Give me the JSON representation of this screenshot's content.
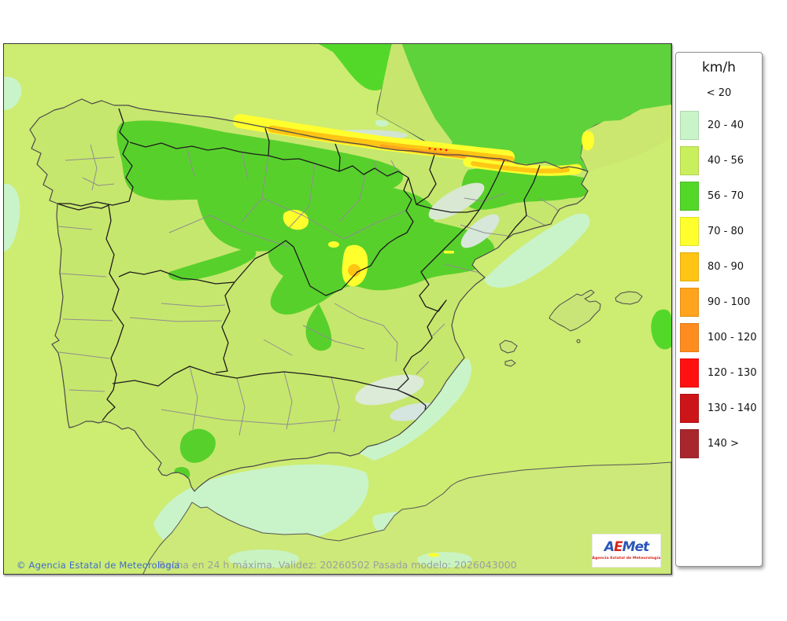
{
  "window": {
    "background": "#ffffff"
  },
  "map": {
    "name": "AEMET maximum wind gust forecast map of Spain",
    "copyright": "© Agencia Estatal de Meteorología",
    "caption": "Racha en 24 h máxima. Validez: 20260502 Pasada modelo: 2026043000",
    "colors": {
      "sea_base": "#cdec72",
      "sea_calm_mint": "#d9f3da",
      "land_base": "#c6e76d",
      "land_green": "#58d02c",
      "africa_land": "#cde979",
      "france_land": "#5ed23a",
      "coast_line": "#4a4a4a",
      "region_border": "#1c1c1c",
      "province_border": "#8f8f8f",
      "mountain_haze": "#d8e8da"
    }
  },
  "logo": {
    "letters": [
      {
        "ch": "A",
        "color": "#2a55b8"
      },
      {
        "ch": "E",
        "color": "#d8251a"
      },
      {
        "ch": "M",
        "color": "#2a55b8"
      },
      {
        "ch": "e",
        "color": "#2a55b8"
      },
      {
        "ch": "t",
        "color": "#2a55b8"
      }
    ],
    "tagline": "Agencia Estatal de Meteorología",
    "tagline_color": "#d8251a"
  },
  "legend": {
    "title": "km/h",
    "open_label": "< 20",
    "items": [
      {
        "label": "20 - 40",
        "color": "#c9f4c9"
      },
      {
        "label": "40 - 56",
        "color": "#c9ef5c"
      },
      {
        "label": "56 - 70",
        "color": "#53d829"
      },
      {
        "label": "70 - 80",
        "color": "#ffff2e"
      },
      {
        "label": "80 - 90",
        "color": "#ffc414"
      },
      {
        "label": "90 - 100",
        "color": "#ffa41c"
      },
      {
        "label": "100 - 120",
        "color": "#ff8c1e"
      },
      {
        "label": "120 - 130",
        "color": "#ff1111"
      },
      {
        "label": "130 - 140",
        "color": "#cc1518"
      },
      {
        "label": "140 >",
        "color": "#a8272c"
      }
    ]
  }
}
